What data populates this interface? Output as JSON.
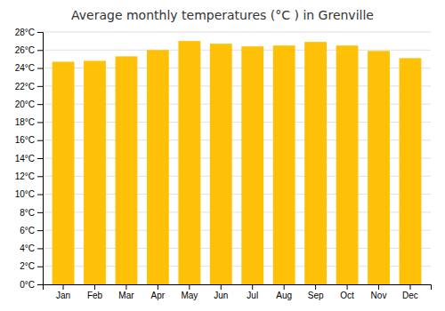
{
  "chart_data": {
    "type": "bar",
    "title": "Average monthly temperatures (°C ) in Grenville",
    "categories": [
      "Jan",
      "Feb",
      "Mar",
      "Apr",
      "May",
      "Jun",
      "Jul",
      "Aug",
      "Sep",
      "Oct",
      "Nov",
      "Dec"
    ],
    "values": [
      24.7,
      24.8,
      25.3,
      26.0,
      27.0,
      26.7,
      26.4,
      26.5,
      26.9,
      26.5,
      25.9,
      25.1
    ],
    "color": "#FFC107",
    "ylim": [
      0,
      28
    ],
    "yticks": [
      {
        "value": 0,
        "label": "0°C"
      },
      {
        "value": 2,
        "label": "2°C"
      },
      {
        "value": 4,
        "label": "4°C"
      },
      {
        "value": 6,
        "label": "6°C"
      },
      {
        "value": 8,
        "label": "8°C"
      },
      {
        "value": 10,
        "label": "10°C"
      },
      {
        "value": 12,
        "label": "12°C"
      },
      {
        "value": 14,
        "label": "14°C"
      },
      {
        "value": 16,
        "label": "16°C"
      },
      {
        "value": 18,
        "label": "18°C"
      },
      {
        "value": 20,
        "label": "20°C"
      },
      {
        "value": 22,
        "label": "22°C"
      },
      {
        "value": 24,
        "label": "24°C"
      },
      {
        "value": 26,
        "label": "26°C"
      },
      {
        "value": 28,
        "label": "28°C"
      }
    ],
    "grid": true
  }
}
